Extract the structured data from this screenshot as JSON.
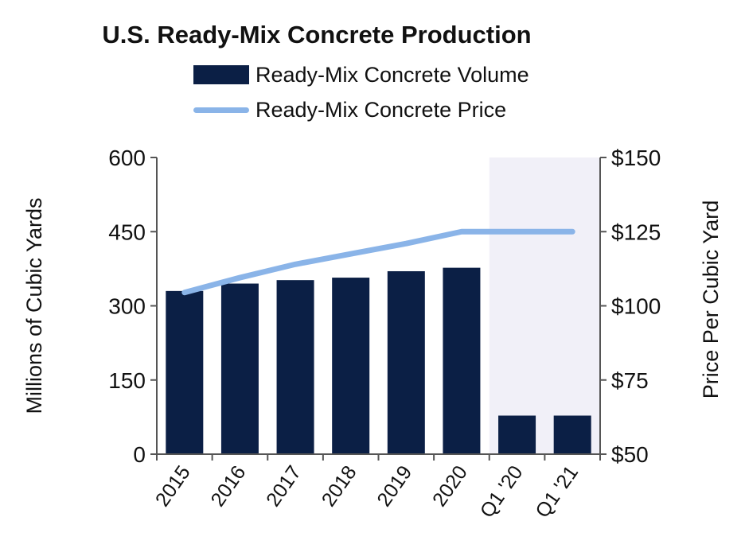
{
  "title": "U.S. Ready-Mix Concrete Production",
  "legend": {
    "volume_label": "Ready-Mix Concrete Volume",
    "price_label": "Ready-Mix Concrete Price"
  },
  "colors": {
    "volume": "#0b1f45",
    "price": "#8ab4e8",
    "shade": "#f1f0f8"
  },
  "chart_data": {
    "type": "bar",
    "categories": [
      "2015",
      "2016",
      "2017",
      "2018",
      "2019",
      "2020",
      "Q1 '20",
      "Q1 '21"
    ],
    "series": [
      {
        "name": "Ready-Mix Concrete Volume",
        "type": "bar",
        "axis": "left",
        "values": [
          330,
          345,
          352,
          357,
          370,
          377,
          78,
          78
        ]
      },
      {
        "name": "Ready-Mix Concrete Price",
        "type": "line",
        "axis": "right",
        "values": [
          104.5,
          109.5,
          114,
          117.5,
          121,
          125,
          125,
          125
        ]
      }
    ],
    "ylabel": "Millions of Cubic Yards",
    "y2label": "Price Per Cubic Yard",
    "ylim": [
      0,
      600
    ],
    "y2lim": [
      50,
      150
    ],
    "yticks": [
      "0",
      "150",
      "300",
      "450",
      "600"
    ],
    "y2ticks": [
      "$50",
      "$75",
      "$100",
      "$125",
      "$150"
    ],
    "shaded_categories": [
      "Q1 '20",
      "Q1 '21"
    ],
    "grid": false
  }
}
